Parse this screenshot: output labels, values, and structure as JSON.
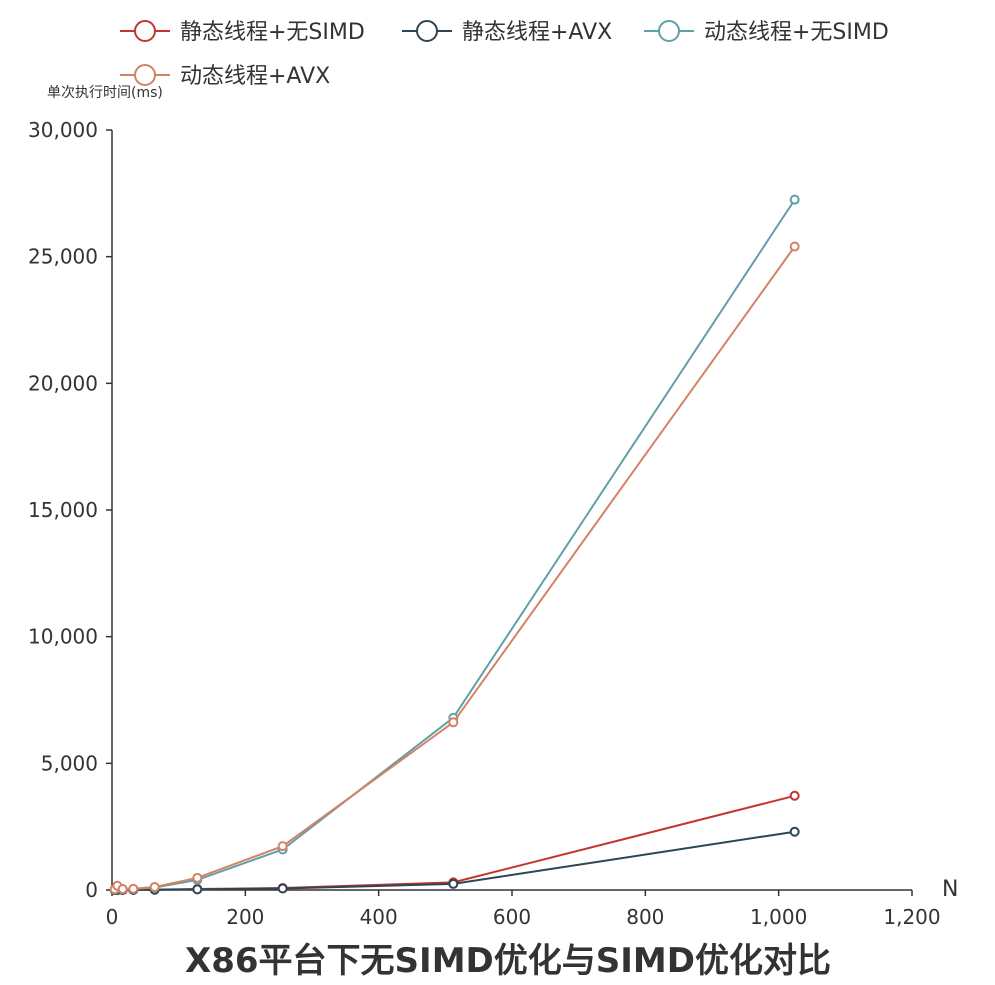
{
  "chart_data": {
    "type": "line",
    "title": "X86平台下无SIMD优化与SIMD优化对比",
    "ylabel": "单次执行时间(ms)",
    "xlabel": "N",
    "xlim": [
      0,
      1200
    ],
    "ylim": [
      0,
      30000
    ],
    "x_ticks": [
      "0",
      "200",
      "400",
      "600",
      "800",
      "1,000",
      "1,200"
    ],
    "y_ticks": [
      "0",
      "5,000",
      "10,000",
      "15,000",
      "20,000",
      "25,000",
      "30,000"
    ],
    "legend_position": "top",
    "grid": false,
    "x": [
      4,
      8,
      16,
      32,
      64,
      128,
      256,
      512,
      1024
    ],
    "series": [
      {
        "name": "静态线程+无SIMD",
        "color": "#c23531",
        "values": [
          1,
          2,
          3,
          5,
          15,
          40,
          80,
          300,
          3720
        ]
      },
      {
        "name": "静态线程+AVX",
        "color": "#2f4554",
        "values": [
          1,
          2,
          3,
          5,
          10,
          25,
          60,
          240,
          2300
        ]
      },
      {
        "name": "动态线程+无SIMD",
        "color": "#61a0a8",
        "values": [
          20,
          60,
          30,
          40,
          100,
          400,
          1600,
          6800,
          27250
        ]
      },
      {
        "name": "动态线程+AVX",
        "color": "#d48265",
        "values": [
          30,
          170,
          40,
          50,
          120,
          480,
          1730,
          6620,
          25400
        ]
      }
    ]
  }
}
